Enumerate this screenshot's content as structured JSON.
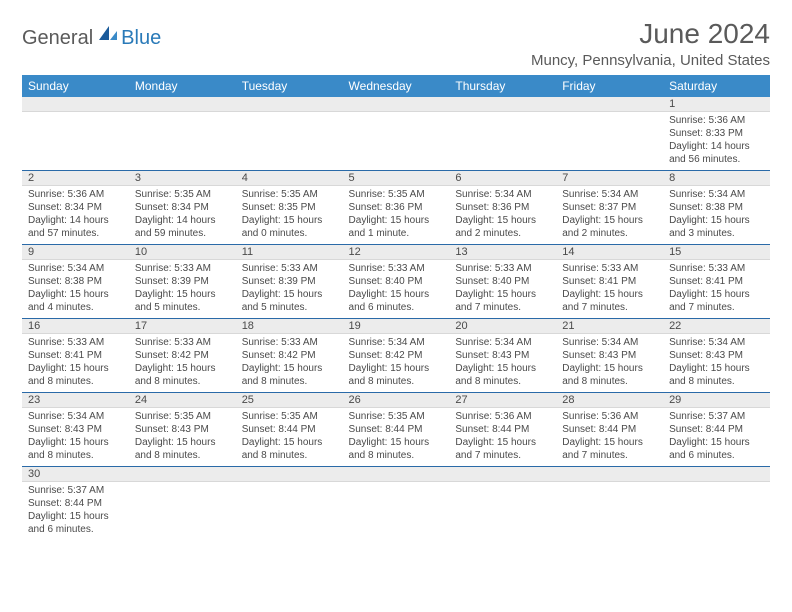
{
  "brand": {
    "dark": "General",
    "blue": "Blue"
  },
  "title": "June 2024",
  "location": "Muncy, Pennsylvania, United States",
  "colors": {
    "header_bg": "#3a8ac8",
    "header_text": "#ffffff",
    "daynum_bg": "#ececec",
    "row_border": "#2a6aa8",
    "body_text": "#4a4a4a",
    "title_text": "#5a5a5a",
    "logo_blue": "#2a7ab8"
  },
  "weekdays": [
    "Sunday",
    "Monday",
    "Tuesday",
    "Wednesday",
    "Thursday",
    "Friday",
    "Saturday"
  ],
  "weeks": [
    [
      null,
      null,
      null,
      null,
      null,
      null,
      {
        "n": "1",
        "sr": "5:36 AM",
        "ss": "8:33 PM",
        "dl": "14 hours and 56 minutes."
      }
    ],
    [
      {
        "n": "2",
        "sr": "5:36 AM",
        "ss": "8:34 PM",
        "dl": "14 hours and 57 minutes."
      },
      {
        "n": "3",
        "sr": "5:35 AM",
        "ss": "8:34 PM",
        "dl": "14 hours and 59 minutes."
      },
      {
        "n": "4",
        "sr": "5:35 AM",
        "ss": "8:35 PM",
        "dl": "15 hours and 0 minutes."
      },
      {
        "n": "5",
        "sr": "5:35 AM",
        "ss": "8:36 PM",
        "dl": "15 hours and 1 minute."
      },
      {
        "n": "6",
        "sr": "5:34 AM",
        "ss": "8:36 PM",
        "dl": "15 hours and 2 minutes."
      },
      {
        "n": "7",
        "sr": "5:34 AM",
        "ss": "8:37 PM",
        "dl": "15 hours and 2 minutes."
      },
      {
        "n": "8",
        "sr": "5:34 AM",
        "ss": "8:38 PM",
        "dl": "15 hours and 3 minutes."
      }
    ],
    [
      {
        "n": "9",
        "sr": "5:34 AM",
        "ss": "8:38 PM",
        "dl": "15 hours and 4 minutes."
      },
      {
        "n": "10",
        "sr": "5:33 AM",
        "ss": "8:39 PM",
        "dl": "15 hours and 5 minutes."
      },
      {
        "n": "11",
        "sr": "5:33 AM",
        "ss": "8:39 PM",
        "dl": "15 hours and 5 minutes."
      },
      {
        "n": "12",
        "sr": "5:33 AM",
        "ss": "8:40 PM",
        "dl": "15 hours and 6 minutes."
      },
      {
        "n": "13",
        "sr": "5:33 AM",
        "ss": "8:40 PM",
        "dl": "15 hours and 7 minutes."
      },
      {
        "n": "14",
        "sr": "5:33 AM",
        "ss": "8:41 PM",
        "dl": "15 hours and 7 minutes."
      },
      {
        "n": "15",
        "sr": "5:33 AM",
        "ss": "8:41 PM",
        "dl": "15 hours and 7 minutes."
      }
    ],
    [
      {
        "n": "16",
        "sr": "5:33 AM",
        "ss": "8:41 PM",
        "dl": "15 hours and 8 minutes."
      },
      {
        "n": "17",
        "sr": "5:33 AM",
        "ss": "8:42 PM",
        "dl": "15 hours and 8 minutes."
      },
      {
        "n": "18",
        "sr": "5:33 AM",
        "ss": "8:42 PM",
        "dl": "15 hours and 8 minutes."
      },
      {
        "n": "19",
        "sr": "5:34 AM",
        "ss": "8:42 PM",
        "dl": "15 hours and 8 minutes."
      },
      {
        "n": "20",
        "sr": "5:34 AM",
        "ss": "8:43 PM",
        "dl": "15 hours and 8 minutes."
      },
      {
        "n": "21",
        "sr": "5:34 AM",
        "ss": "8:43 PM",
        "dl": "15 hours and 8 minutes."
      },
      {
        "n": "22",
        "sr": "5:34 AM",
        "ss": "8:43 PM",
        "dl": "15 hours and 8 minutes."
      }
    ],
    [
      {
        "n": "23",
        "sr": "5:34 AM",
        "ss": "8:43 PM",
        "dl": "15 hours and 8 minutes."
      },
      {
        "n": "24",
        "sr": "5:35 AM",
        "ss": "8:43 PM",
        "dl": "15 hours and 8 minutes."
      },
      {
        "n": "25",
        "sr": "5:35 AM",
        "ss": "8:44 PM",
        "dl": "15 hours and 8 minutes."
      },
      {
        "n": "26",
        "sr": "5:35 AM",
        "ss": "8:44 PM",
        "dl": "15 hours and 8 minutes."
      },
      {
        "n": "27",
        "sr": "5:36 AM",
        "ss": "8:44 PM",
        "dl": "15 hours and 7 minutes."
      },
      {
        "n": "28",
        "sr": "5:36 AM",
        "ss": "8:44 PM",
        "dl": "15 hours and 7 minutes."
      },
      {
        "n": "29",
        "sr": "5:37 AM",
        "ss": "8:44 PM",
        "dl": "15 hours and 6 minutes."
      }
    ],
    [
      {
        "n": "30",
        "sr": "5:37 AM",
        "ss": "8:44 PM",
        "dl": "15 hours and 6 minutes."
      },
      null,
      null,
      null,
      null,
      null,
      null
    ]
  ],
  "labels": {
    "sunrise": "Sunrise: ",
    "sunset": "Sunset: ",
    "daylight": "Daylight: "
  }
}
